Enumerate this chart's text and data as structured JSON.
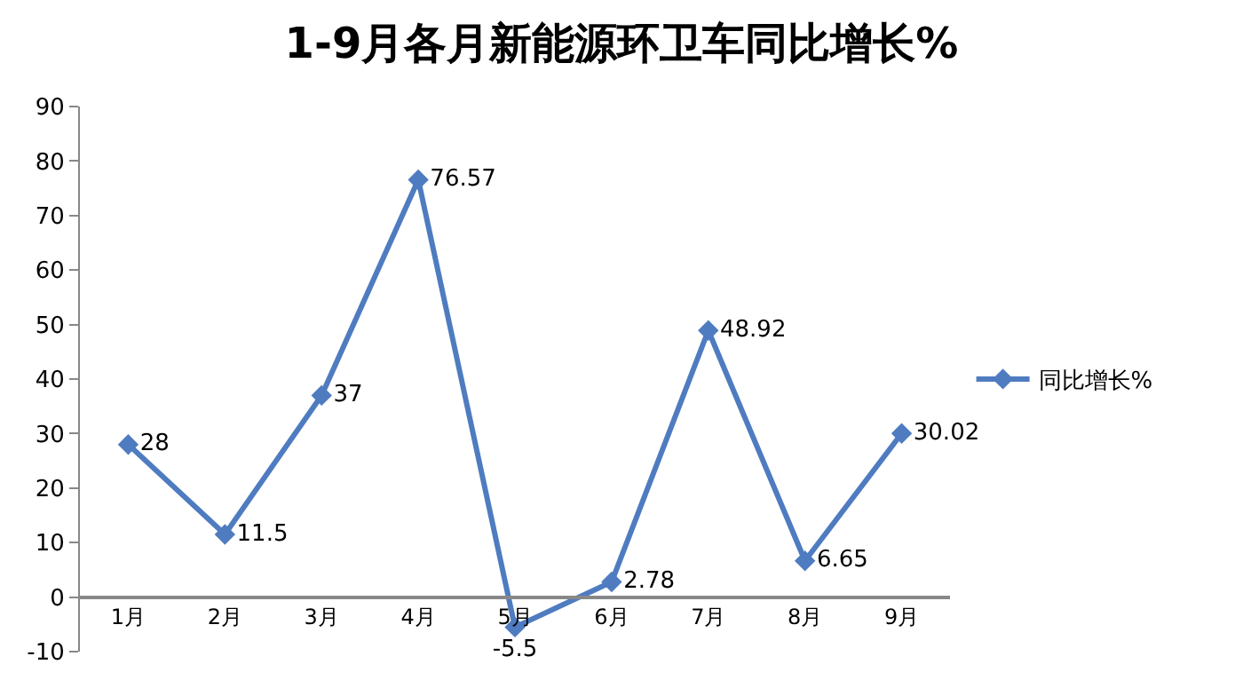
{
  "chart_data": {
    "type": "line",
    "title": "1-9月各月新能源环卫车同比增长%",
    "categories": [
      "1月",
      "2月",
      "3月",
      "4月",
      "5月",
      "6月",
      "7月",
      "8月",
      "9月"
    ],
    "series": [
      {
        "name": "同比增长%",
        "color": "#4f7cc0",
        "values": [
          28,
          11.5,
          37,
          76.57,
          -5.5,
          2.78,
          48.92,
          6.65,
          30.02
        ]
      }
    ],
    "ylim": [
      -10,
      90
    ],
    "yticks": [
      -10,
      0,
      10,
      20,
      30,
      40,
      50,
      60,
      70,
      80,
      90
    ],
    "data_labels": true,
    "marker": "diamond",
    "line_style": "solid",
    "legend": "right",
    "grid": false
  }
}
